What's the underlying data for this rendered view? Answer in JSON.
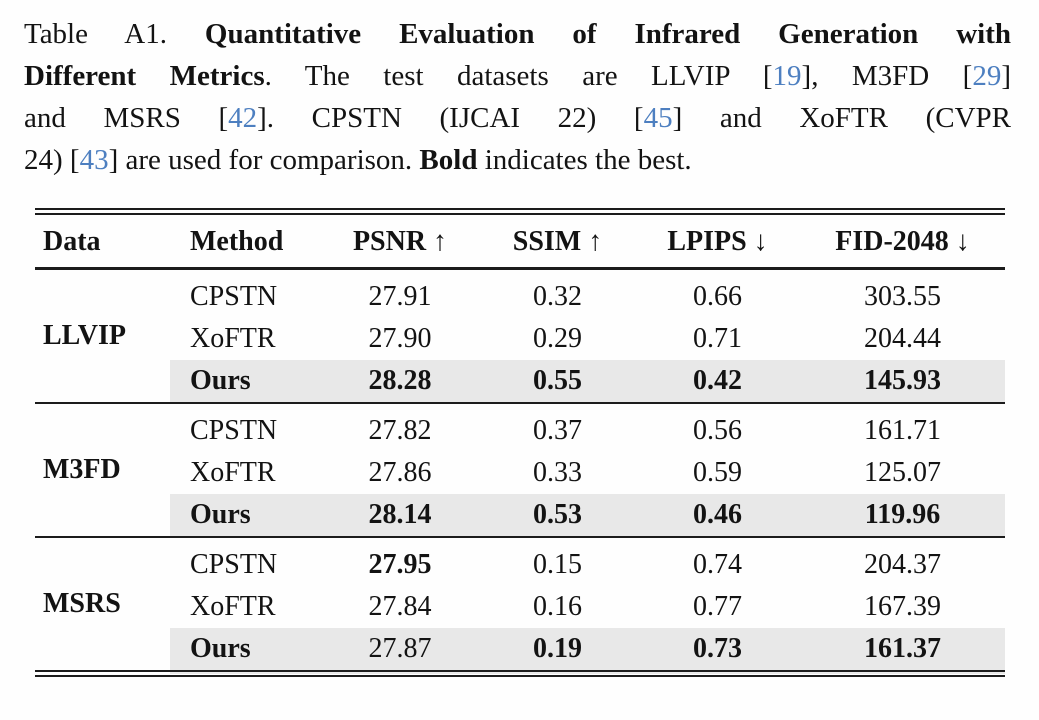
{
  "colors": {
    "citation": "#4d7fc0",
    "highlight_row": "#e8e8e8",
    "rule": "#1c1c1c",
    "text": "#131313"
  },
  "caption": {
    "lines": [
      {
        "parts": [
          {
            "t": "Table A1. ",
            "s": "plain"
          },
          {
            "t": "Quantitative Evaluation of Infrared Generation with",
            "s": "bold"
          }
        ]
      },
      {
        "parts": [
          {
            "t": "Different Metrics",
            "s": "bold"
          },
          {
            "t": ". The test datasets are LLVIP [",
            "s": "plain"
          },
          {
            "t": "19",
            "s": "cite"
          },
          {
            "t": "], M3FD [",
            "s": "plain"
          },
          {
            "t": "29",
            "s": "cite"
          },
          {
            "t": "]",
            "s": "plain"
          }
        ]
      },
      {
        "parts": [
          {
            "t": "and MSRS [",
            "s": "plain"
          },
          {
            "t": "42",
            "s": "cite"
          },
          {
            "t": "]. CPSTN (IJCAI 22) [",
            "s": "plain"
          },
          {
            "t": "45",
            "s": "cite"
          },
          {
            "t": "] and XoFTR (CVPR",
            "s": "plain"
          }
        ]
      },
      {
        "parts": [
          {
            "t": "24) [",
            "s": "plain"
          },
          {
            "t": "43",
            "s": "cite"
          },
          {
            "t": "] are used for comparison. ",
            "s": "plain"
          },
          {
            "t": "Bold",
            "s": "bold"
          },
          {
            "t": " indicates the best.",
            "s": "plain"
          }
        ]
      }
    ]
  },
  "table": {
    "headers": [
      "Data",
      "Method",
      "PSNR ↑",
      "SSIM ↑",
      "LPIPS ↓",
      "FID-2048 ↓"
    ],
    "groups": [
      {
        "name": "LLVIP",
        "name_bold": true,
        "rows": [
          {
            "method": "CPSTN",
            "method_bold": false,
            "highlight": false,
            "values": [
              "27.91",
              "0.32",
              "0.66",
              "303.55"
            ],
            "bold": [
              false,
              false,
              false,
              false
            ]
          },
          {
            "method": "XoFTR",
            "method_bold": false,
            "highlight": false,
            "values": [
              "27.90",
              "0.29",
              "0.71",
              "204.44"
            ],
            "bold": [
              false,
              false,
              false,
              false
            ]
          },
          {
            "method": "Ours",
            "method_bold": true,
            "highlight": true,
            "values": [
              "28.28",
              "0.55",
              "0.42",
              "145.93"
            ],
            "bold": [
              true,
              true,
              true,
              true
            ]
          }
        ]
      },
      {
        "name": "M3FD",
        "name_bold": true,
        "rows": [
          {
            "method": "CPSTN",
            "method_bold": false,
            "highlight": false,
            "values": [
              "27.82",
              "0.37",
              "0.56",
              "161.71"
            ],
            "bold": [
              false,
              false,
              false,
              false
            ]
          },
          {
            "method": "XoFTR",
            "method_bold": false,
            "highlight": false,
            "values": [
              "27.86",
              "0.33",
              "0.59",
              "125.07"
            ],
            "bold": [
              false,
              false,
              false,
              false
            ]
          },
          {
            "method": "Ours",
            "method_bold": true,
            "highlight": true,
            "values": [
              "28.14",
              "0.53",
              "0.46",
              "119.96"
            ],
            "bold": [
              true,
              true,
              true,
              true
            ]
          }
        ]
      },
      {
        "name": "MSRS",
        "name_bold": true,
        "rows": [
          {
            "method": "CPSTN",
            "method_bold": false,
            "highlight": false,
            "values": [
              "27.95",
              "0.15",
              "0.74",
              "204.37"
            ],
            "bold": [
              true,
              false,
              false,
              false
            ]
          },
          {
            "method": "XoFTR",
            "method_bold": false,
            "highlight": false,
            "values": [
              "27.84",
              "0.16",
              "0.77",
              "167.39"
            ],
            "bold": [
              false,
              false,
              false,
              false
            ]
          },
          {
            "method": "Ours",
            "method_bold": true,
            "highlight": true,
            "values": [
              "27.87",
              "0.19",
              "0.73",
              "161.37"
            ],
            "bold": [
              false,
              true,
              true,
              true
            ]
          }
        ]
      }
    ]
  }
}
